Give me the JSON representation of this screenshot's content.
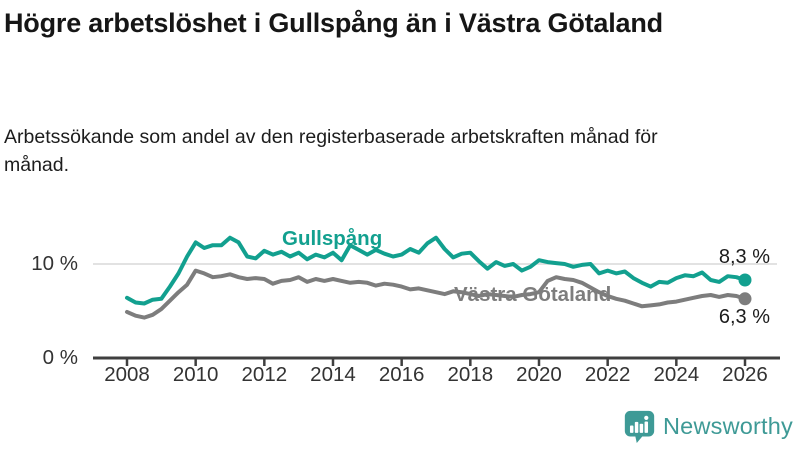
{
  "chart_data": {
    "type": "line",
    "title": "Högre arbetslöshet i Gullspång än i Västra Götaland",
    "subtitle": "Arbetssökande som andel av den registerbaserade arbetskraften månad för månad.",
    "unit": "%",
    "grid": "single horizontal gridline at 10 %",
    "grid_color": "#d9d9d9",
    "axis_color": "#3f3f3f",
    "legend_position": "inline labels on lines, value labels at line ends",
    "xlim": [
      2008,
      2026
    ],
    "ylim": [
      0,
      13.5
    ],
    "xticks": [
      2008,
      2010,
      2012,
      2014,
      2016,
      2018,
      2020,
      2022,
      2024,
      2026
    ],
    "yticks": [
      {
        "value": 10,
        "label": "10 %",
        "grid": true
      },
      {
        "value": 0,
        "label": "0 %",
        "grid": false
      }
    ],
    "x": [
      2008,
      2008.25,
      2008.5,
      2008.75,
      2009,
      2009.25,
      2009.5,
      2009.75,
      2010,
      2010.25,
      2010.5,
      2010.75,
      2011,
      2011.25,
      2011.5,
      2011.75,
      2012,
      2012.25,
      2012.5,
      2012.75,
      2013,
      2013.25,
      2013.5,
      2013.75,
      2014,
      2014.25,
      2014.5,
      2014.75,
      2015,
      2015.25,
      2015.5,
      2015.75,
      2016,
      2016.25,
      2016.5,
      2016.75,
      2017,
      2017.25,
      2017.5,
      2017.75,
      2018,
      2018.25,
      2018.5,
      2018.75,
      2019,
      2019.25,
      2019.5,
      2019.75,
      2020,
      2020.25,
      2020.5,
      2020.75,
      2021,
      2021.25,
      2021.5,
      2021.75,
      2022,
      2022.25,
      2022.5,
      2022.75,
      2023,
      2023.25,
      2023.5,
      2023.75,
      2024,
      2024.25,
      2024.5,
      2024.75,
      2025,
      2025.25,
      2025.5,
      2025.75,
      2026
    ],
    "series": [
      {
        "id": "gullspang",
        "name": "Gullspång",
        "color": "#12a08f",
        "end_label": "8,3 %",
        "end_value": 8.3,
        "values": [
          6.4,
          5.9,
          5.8,
          6.2,
          6.3,
          7.6,
          9.0,
          10.8,
          12.3,
          11.7,
          12.0,
          12.0,
          12.8,
          12.3,
          10.8,
          10.6,
          11.4,
          11.0,
          11.3,
          10.8,
          11.2,
          10.5,
          11.0,
          10.7,
          11.2,
          10.4,
          12.0,
          11.5,
          11.0,
          11.5,
          11.1,
          10.8,
          11.0,
          11.6,
          11.2,
          12.2,
          12.8,
          11.6,
          10.7,
          11.1,
          11.2,
          10.3,
          9.5,
          10.2,
          9.8,
          10.0,
          9.3,
          9.7,
          10.4,
          10.2,
          10.1,
          10.0,
          9.7,
          9.9,
          10.0,
          9.0,
          9.3,
          9.0,
          9.2,
          8.5,
          8.0,
          7.6,
          8.1,
          8.0,
          8.5,
          8.8,
          8.7,
          9.1,
          8.3,
          8.1,
          8.7,
          8.6,
          8.3
        ]
      },
      {
        "id": "vastra-gotaland",
        "name": "Västra Götaland",
        "color": "#7d7d7d",
        "end_label": "6,3 %",
        "end_value": 6.3,
        "values": [
          4.9,
          4.5,
          4.3,
          4.6,
          5.2,
          6.1,
          7.0,
          7.8,
          9.3,
          9.0,
          8.6,
          8.7,
          8.9,
          8.6,
          8.4,
          8.5,
          8.4,
          7.9,
          8.2,
          8.3,
          8.6,
          8.1,
          8.4,
          8.2,
          8.4,
          8.2,
          8.0,
          8.1,
          8.0,
          7.7,
          7.9,
          7.8,
          7.6,
          7.3,
          7.4,
          7.2,
          7.0,
          6.8,
          7.1,
          7.0,
          6.8,
          6.6,
          6.8,
          6.7,
          6.6,
          6.5,
          6.7,
          6.8,
          7.0,
          8.2,
          8.6,
          8.4,
          8.3,
          8.0,
          7.5,
          7.0,
          6.6,
          6.3,
          6.1,
          5.8,
          5.5,
          5.6,
          5.7,
          5.9,
          6.0,
          6.2,
          6.4,
          6.6,
          6.7,
          6.5,
          6.7,
          6.6,
          6.3
        ]
      }
    ]
  },
  "footer": {
    "brand": "Newsworthy",
    "logo_icon": "bar-chart-speech-bubble-icon",
    "brand_color": "#3e9a96"
  }
}
